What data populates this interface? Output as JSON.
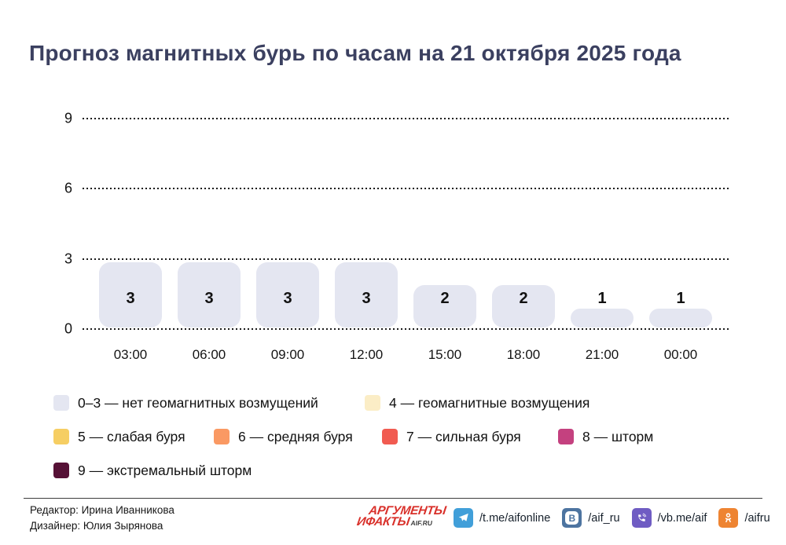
{
  "header": {
    "title": "Прогноз магнитных бурь по часам на 21 октября 2025 года",
    "title_color": "#3B4060"
  },
  "chart_data": {
    "type": "bar",
    "title": "Прогноз магнитных бурь по часам на 21 октября 2025 года",
    "categories": [
      "03:00",
      "06:00",
      "09:00",
      "12:00",
      "15:00",
      "18:00",
      "21:00",
      "00:00"
    ],
    "values": [
      3,
      3,
      3,
      3,
      2,
      2,
      1,
      1
    ],
    "xlabel": "",
    "ylabel": "",
    "ylim": [
      0,
      9
    ],
    "yticks": [
      0,
      3,
      6,
      9
    ],
    "grid": "horizontal-dotted",
    "legend_position": "bottom",
    "bar_color": "#E4E6F1",
    "bar_label_color": "#111111"
  },
  "legend": {
    "rows": [
      [
        {
          "label": "0–3 — нет геомагнитных возмущений",
          "color": "#E4E6F1"
        },
        {
          "label": "4 — геомагнитные возмущения",
          "color": "#FBEDC6"
        }
      ],
      [
        {
          "label": "5 — слабая буря",
          "color": "#F6CE63"
        },
        {
          "label": "6 — средняя буря",
          "color": "#FA9963"
        },
        {
          "label": "7 — сильная буря",
          "color": "#F15B51"
        },
        {
          "label": "8 — шторм",
          "color": "#C4417F"
        }
      ],
      [
        {
          "label": "9 — экстремальный шторм",
          "color": "#561136"
        }
      ]
    ]
  },
  "footer": {
    "editor": "Редактор: Ирина Иванникова",
    "designer": "Дизайнер: Юлия Зырянова",
    "logo": {
      "line1": "АРГУМЕНТЫ",
      "line2": "ИФАКТЫ",
      "suffix": "AIF.RU",
      "color": "#D9312B"
    },
    "socials": [
      {
        "icon": "telegram",
        "label": "/t.me/aifonline",
        "color": "#419FD9"
      },
      {
        "icon": "vk",
        "label": "/aif_ru",
        "color": "#4D74A0"
      },
      {
        "icon": "viber",
        "label": "/vb.me/aif",
        "color": "#6F5CC3"
      },
      {
        "icon": "ok",
        "label": "/aifru",
        "color": "#EE8432"
      }
    ]
  }
}
